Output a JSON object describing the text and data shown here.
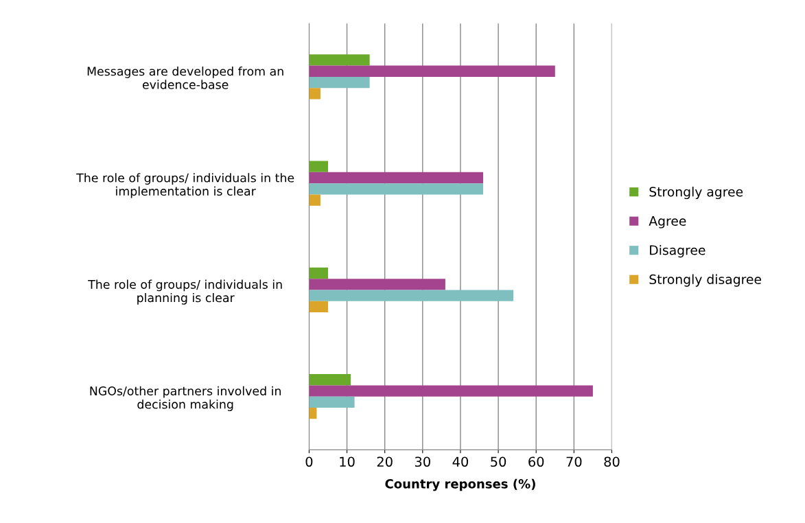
{
  "chart_data": {
    "type": "bar",
    "orientation": "horizontal",
    "xlabel": "Country reponses (%)",
    "categories": [
      "Messages are developed from an\nevidence-base",
      "The role of groups/ individuals in the\nimplementation is clear",
      "The role of groups/ individuals in\nplanning is clear",
      "NGOs/other partners involved in\ndecision making"
    ],
    "series": [
      {
        "name": "Strongly agree",
        "color": "#6aaa2a",
        "values": [
          16,
          5,
          5,
          11
        ]
      },
      {
        "name": "Agree",
        "color": "#a4448f",
        "values": [
          65,
          46,
          36,
          75
        ]
      },
      {
        "name": "Disagree",
        "color": "#7fbfbf",
        "values": [
          16,
          46,
          54,
          12
        ]
      },
      {
        "name": "Strongly disagree",
        "color": "#dba52a",
        "values": [
          3,
          3,
          5,
          2
        ]
      }
    ],
    "xlim": [
      0,
      80
    ],
    "xticks": [
      0,
      10,
      20,
      30,
      40,
      50,
      60,
      70,
      80
    ],
    "grid": "x",
    "legend": "right"
  }
}
